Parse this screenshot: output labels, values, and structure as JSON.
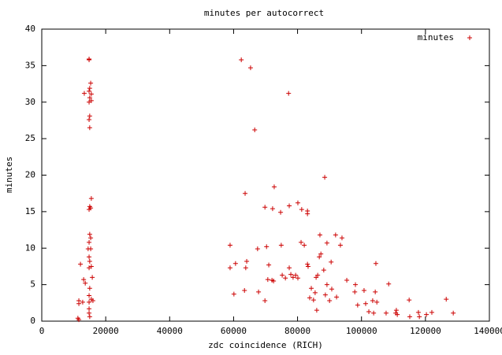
{
  "chart_data": {
    "type": "scatter",
    "title": "minutes per autocorrect",
    "x_label": "zdc coincidence (RICH)",
    "y_label": "minutes",
    "legend": "top-right",
    "series": [
      {
        "name": "minutes",
        "color": "#cc0000",
        "x": [
          14800,
          14800,
          15300,
          15000,
          14800,
          15500,
          15000,
          15500,
          14800,
          13300,
          15000,
          14800,
          15000,
          15500,
          15000,
          14800,
          15300,
          15000,
          15300,
          14800,
          14500,
          15300,
          14800,
          15000,
          15500,
          14800,
          12100,
          15800,
          13100,
          13600,
          15000,
          14800,
          15500,
          14800,
          16000,
          11600,
          11600,
          12800,
          14800,
          14800,
          15000,
          11300,
          11600,
          62400,
          65300,
          77200,
          66600,
          88500,
          63600,
          72700,
          80100,
          77400,
          69800,
          72200,
          74700,
          81300,
          83100,
          83100,
          58900,
          74900,
          70300,
          67500,
          81100,
          82100,
          87000,
          91900,
          93900,
          93400,
          89200,
          87300,
          86800,
          60600,
          64100,
          63800,
          58900,
          71000,
          77400,
          83100,
          83300,
          90500,
          104500,
          88200,
          77900,
          78600,
          79400,
          80100,
          75200,
          76200,
          70700,
          72000,
          72500,
          85800,
          86300,
          95400,
          98100,
          108500,
          89200,
          90700,
          84300,
          63400,
          67800,
          85500,
          88700,
          60100,
          83800,
          92200,
          85000,
          90000,
          97900,
          100800,
          104300,
          98800,
          101300,
          103500,
          104800,
          69800,
          114900,
          126500,
          86000,
          102300,
          103800,
          107700,
          110700,
          111200,
          110900,
          115100,
          117800,
          118100,
          120300,
          122000,
          128700
        ],
        "values": [
          35.8,
          35.9,
          32.6,
          31.9,
          31.5,
          31.1,
          30.6,
          30.2,
          30.0,
          31.2,
          28.1,
          27.6,
          26.5,
          16.8,
          15.7,
          15.3,
          15.5,
          11.9,
          11.4,
          10.8,
          9.9,
          9.9,
          8.8,
          8.2,
          7.5,
          7.3,
          7.8,
          6.0,
          5.7,
          5.2,
          4.5,
          3.5,
          3.0,
          2.6,
          2.8,
          2.8,
          2.4,
          2.6,
          1.7,
          1.1,
          0.6,
          0.4,
          0.2,
          35.8,
          34.7,
          31.2,
          26.2,
          19.7,
          17.5,
          18.4,
          16.2,
          15.8,
          15.6,
          15.4,
          14.9,
          15.3,
          15.1,
          14.7,
          10.4,
          10.4,
          10.2,
          9.9,
          10.8,
          10.4,
          11.8,
          11.8,
          11.4,
          10.4,
          10.7,
          9.2,
          8.8,
          7.9,
          8.2,
          7.3,
          7.3,
          7.7,
          7.3,
          7.8,
          7.5,
          8.1,
          7.9,
          7.0,
          6.4,
          6.0,
          6.3,
          5.9,
          6.3,
          5.9,
          5.7,
          5.6,
          5.5,
          6.0,
          6.3,
          5.6,
          5.0,
          5.1,
          5.0,
          4.4,
          4.5,
          4.2,
          4.0,
          3.9,
          3.6,
          3.7,
          3.2,
          3.3,
          2.9,
          2.8,
          4.0,
          4.2,
          4.0,
          2.2,
          2.4,
          2.8,
          2.6,
          2.8,
          2.9,
          3.0,
          1.5,
          1.3,
          1.1,
          1.1,
          1.1,
          0.9,
          1.5,
          0.6,
          1.2,
          0.6,
          0.9,
          1.2,
          1.1
        ]
      }
    ],
    "xlim": [
      0,
      140000
    ],
    "xticks": [
      0,
      20000,
      40000,
      60000,
      80000,
      100000,
      120000,
      140000
    ],
    "ylim": [
      0,
      40
    ],
    "yticks": [
      0,
      5,
      10,
      15,
      20,
      25,
      30,
      35,
      40
    ]
  }
}
